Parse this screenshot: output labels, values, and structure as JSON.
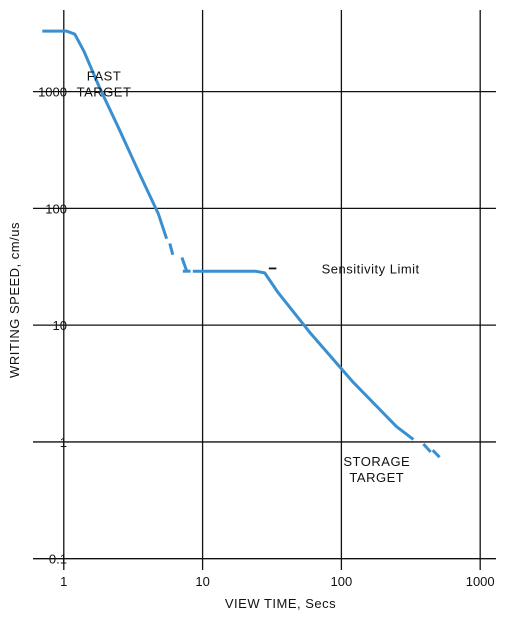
{
  "chart_data": {
    "type": "line",
    "xscale": "log",
    "yscale": "log",
    "xlim": [
      0.6,
      1300
    ],
    "ylim": [
      0.08,
      5000
    ],
    "xticks": [
      1,
      10,
      100,
      1000
    ],
    "xtick_labels": [
      "1",
      "10",
      "100",
      "1000"
    ],
    "yticks": [
      0.1,
      1,
      10,
      100,
      1000
    ],
    "ytick_labels": [
      "0.1",
      "1",
      "10",
      "100",
      "1000"
    ],
    "xlabel": "VIEW TIME, Secs",
    "ylabel": "WRITING SPEED, cm/us",
    "grid": true,
    "line_color": "#3a8fd0",
    "series": [
      {
        "name": "FAST TARGET",
        "segments": [
          {
            "style": "solid",
            "x": [
              0.7,
              1.05,
              1.2,
              1.4,
              1.8,
              2.5,
              3.5,
              4.8,
              5.5
            ],
            "y": [
              3300,
              3300,
              3100,
              2200,
              1100,
              480,
              200,
              90,
              55
            ]
          },
          {
            "style": "solid",
            "x": [
              5.8,
              6.1
            ],
            "y": [
              50,
              40
            ]
          },
          {
            "style": "solid",
            "x": [
              7.1,
              7.7
            ],
            "y": [
              38,
              29
            ]
          }
        ]
      },
      {
        "name": "STORAGE TARGET",
        "segments": [
          {
            "style": "solid",
            "x": [
              8.5,
              24,
              28,
              35,
              60,
              120,
              250,
              330
            ],
            "y": [
              29,
              29,
              28,
              19,
              8.5,
              3.3,
              1.35,
              1.05
            ]
          },
          {
            "style": "solid",
            "x": [
              390,
              440
            ],
            "y": [
              0.96,
              0.82
            ]
          },
          {
            "style": "solid",
            "x": [
              455,
              510
            ],
            "y": [
              0.85,
              0.74
            ]
          }
        ]
      },
      {
        "name": "Sensitivity Limit",
        "segments": [
          {
            "style": "solid",
            "x": [
              7.2,
              8.2
            ],
            "y": [
              29,
              29
            ]
          }
        ]
      }
    ],
    "annotations": [
      {
        "lines": [
          "FAST",
          "TARGET"
        ],
        "x": 1.95,
        "y": 1250
      },
      {
        "lines": [
          "STORAGE",
          "TARGET"
        ],
        "x": 180,
        "y": 0.62
      },
      {
        "lines": [
          "Sensitivity  Limit"
        ],
        "x": 72,
        "y": 30,
        "leader": {
          "x": [
            30,
            34
          ],
          "y": 30
        }
      }
    ]
  }
}
